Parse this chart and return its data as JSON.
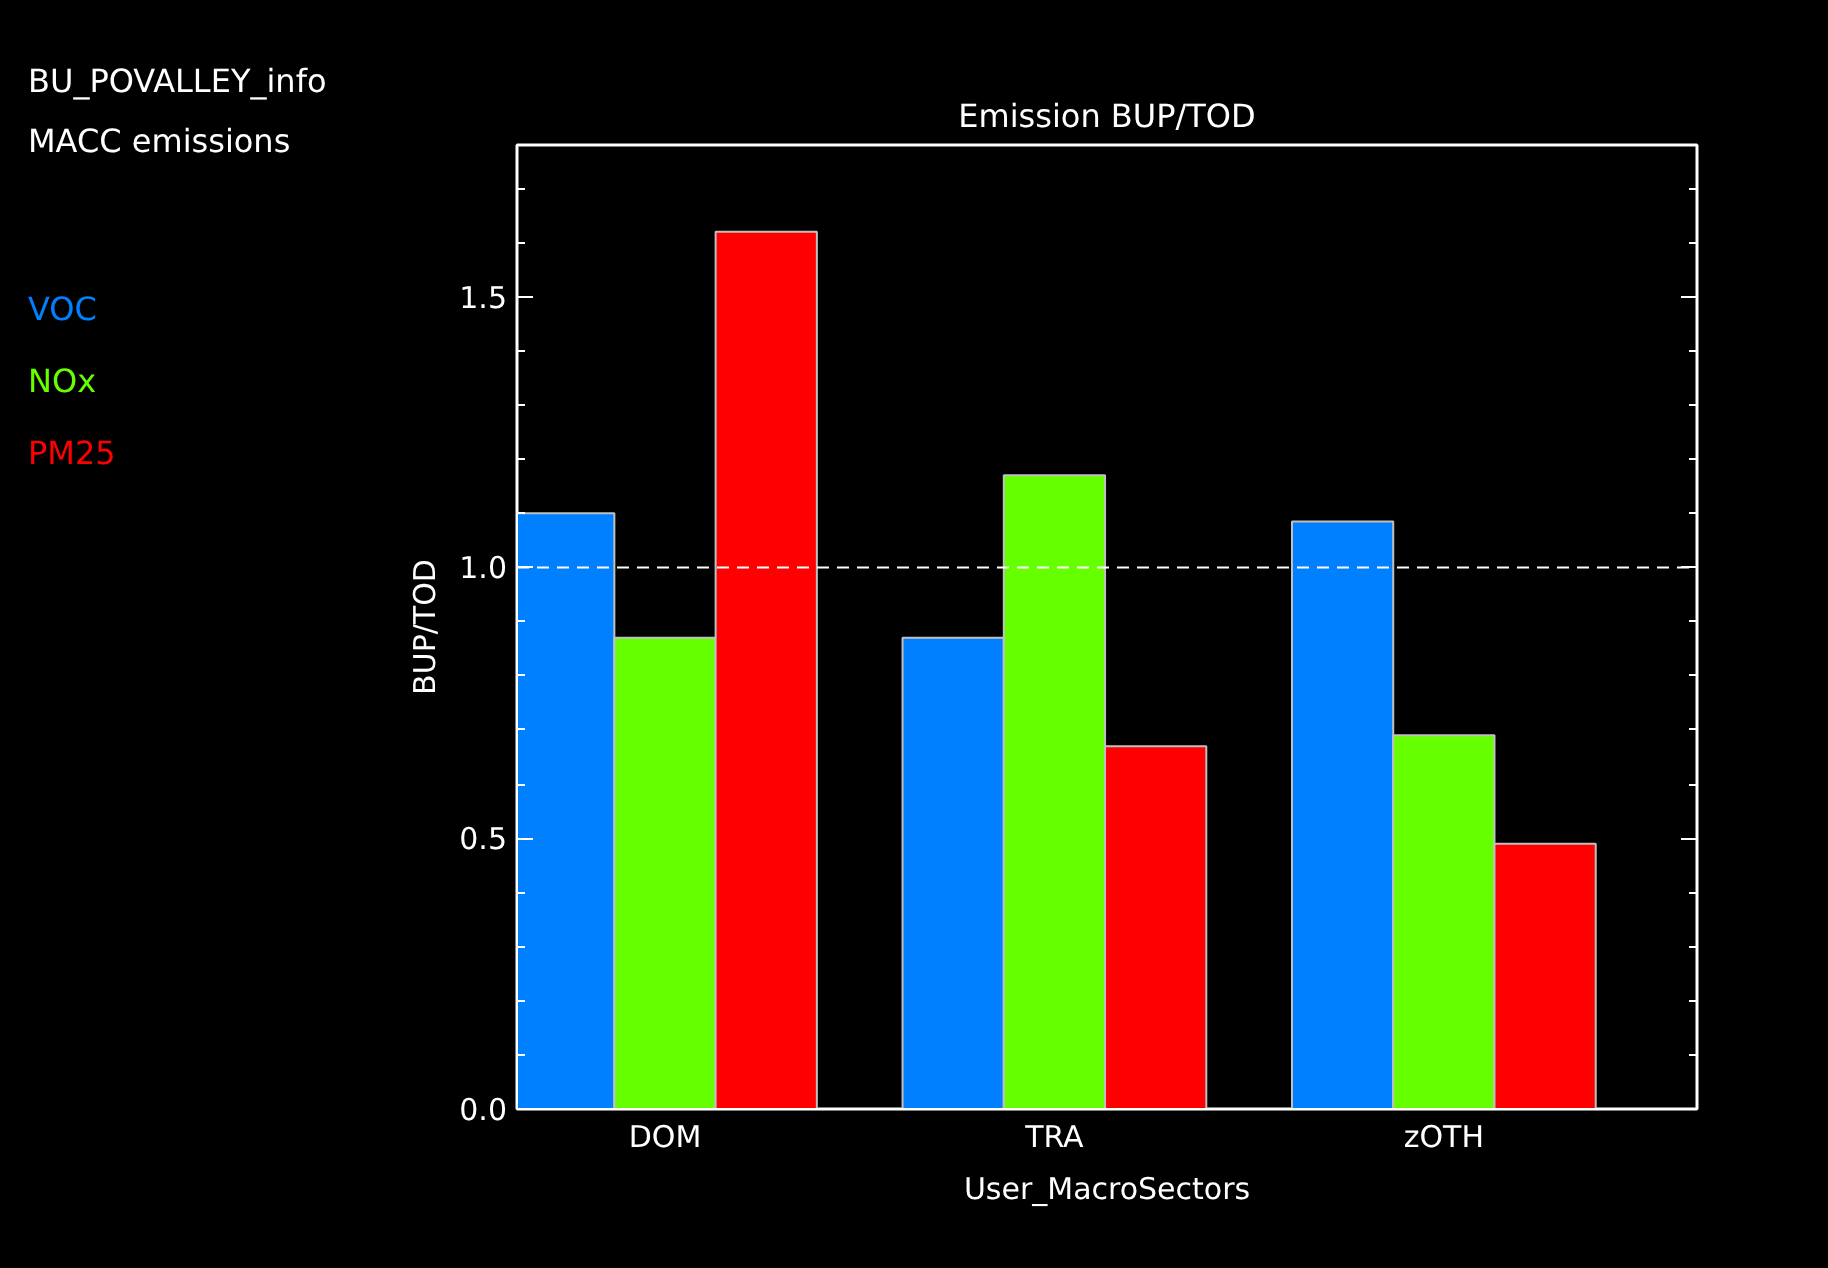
{
  "chart_data": {
    "type": "bar",
    "title": "Emission BUP/TOD",
    "annotations": [
      "BU_POVALLEY_info",
      "MACC emissions"
    ],
    "xlabel": "User_MacroSectors",
    "ylabel": "BUP/TOD",
    "categories": [
      "DOM",
      "TRA",
      "zOTH"
    ],
    "series": [
      {
        "name": "VOC",
        "color": "#0080ff",
        "values": [
          1.1,
          0.87,
          1.085
        ]
      },
      {
        "name": "NOx",
        "color": "#66ff00",
        "values": [
          0.87,
          1.17,
          0.69
        ]
      },
      {
        "name": "PM25",
        "color": "#ff0000",
        "values": [
          1.62,
          0.67,
          0.49
        ]
      }
    ],
    "ylim": [
      0,
      1.78
    ],
    "yticks": [
      {
        "value": 0,
        "label": "0.0"
      },
      {
        "value": 0.5,
        "label": "0.5"
      },
      {
        "value": 1,
        "label": "1.0"
      },
      {
        "value": 1.5,
        "label": "1.5"
      }
    ],
    "ref_lines": [
      {
        "axis": "y",
        "value": 1.0,
        "color": "#ffffff",
        "line_style": "dashed"
      }
    ],
    "grid": false
  }
}
